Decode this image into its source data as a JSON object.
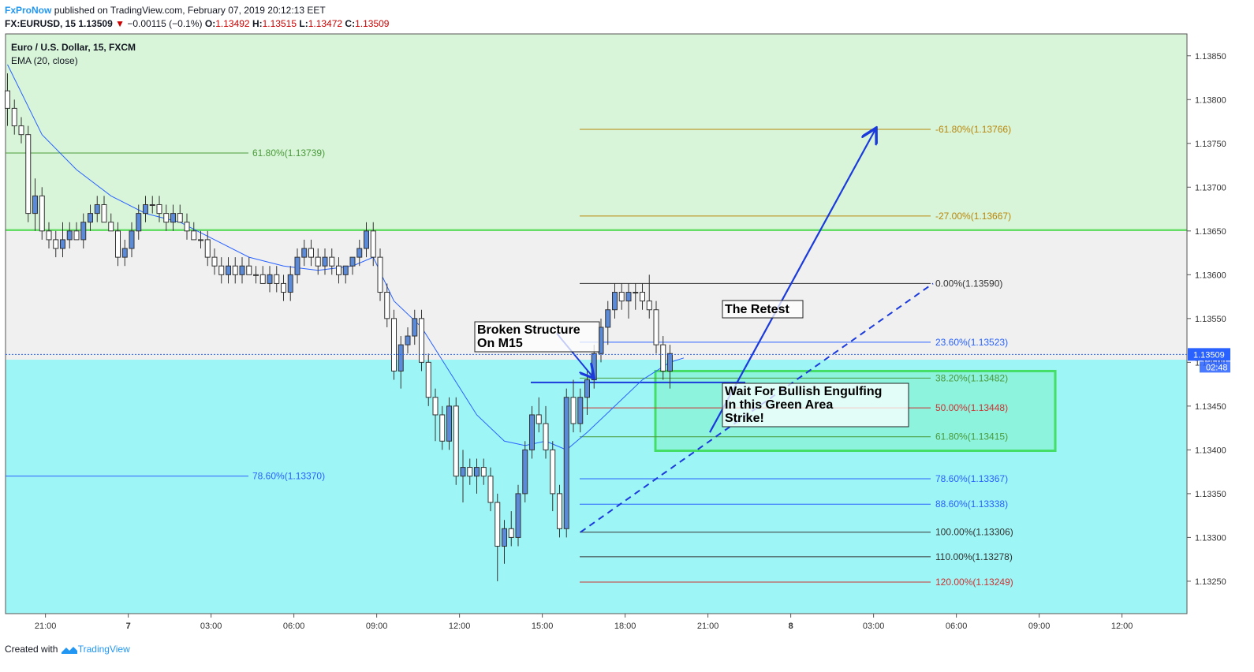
{
  "header": {
    "brand": "FxProNow",
    "published": "published on TradingView.com, February 07, 2019 20:12:13 EET",
    "symbol": "FX:EURUSD, 15",
    "last": "1.13509",
    "change_arrow": "▼",
    "change": "−0.00115 (−0.1%)",
    "o_label": "O:",
    "o": "1.13492",
    "h_label": "H:",
    "h": "1.13515",
    "l_label": "L:",
    "l": "1.13472",
    "c_label": "C:",
    "c": "1.13509"
  },
  "footer": {
    "prefix": "Created with",
    "brand": "TradingView",
    "logo_icon": "tradingview-logo-icon"
  },
  "chart_data": {
    "type": "candlestick",
    "title": "Euro / U.S. Dollar, 15, FXCM",
    "indicator": "EMA (20, close)",
    "ylim": [
      1.13213,
      1.13875
    ],
    "y_ticks": [
      1.1385,
      1.138,
      1.1375,
      1.137,
      1.1365,
      1.136,
      1.1355,
      1.135,
      1.1345,
      1.134,
      1.1335,
      1.133,
      1.1325
    ],
    "x_ticks": [
      {
        "label": "21:00",
        "bar": 5.5
      },
      {
        "label": "7",
        "bar": 17.5
      },
      {
        "label": "03:00",
        "bar": 29.5
      },
      {
        "label": "06:00",
        "bar": 41.5
      },
      {
        "label": "09:00",
        "bar": 53.5
      },
      {
        "label": "12:00",
        "bar": 65.5
      },
      {
        "label": "15:00",
        "bar": 77.5
      },
      {
        "label": "18:00",
        "bar": 89.5
      },
      {
        "label": "21:00",
        "bar": 101.5
      },
      {
        "label": "8",
        "bar": 113.5
      },
      {
        "label": "03:00",
        "bar": 125.5
      },
      {
        "label": "06:00",
        "bar": 137.5
      },
      {
        "label": "09:00",
        "bar": 149.5
      },
      {
        "label": "12:00",
        "bar": 161.5
      }
    ],
    "price_label": "1.13509",
    "countdown": "02:48",
    "zones": [
      {
        "name": "upper-green-zone",
        "from": 1.13651,
        "to": 1.13875,
        "color": "#d9f5d9"
      },
      {
        "name": "middle-grey-zone",
        "from": 1.13503,
        "to": 1.13651,
        "color": "#f0f0f0"
      },
      {
        "name": "lower-cyan-zone",
        "from": 1.13213,
        "to": 1.13503,
        "color": "#9ef5f5"
      }
    ],
    "hlines": [
      {
        "price": 1.13651,
        "color": "#66dd66"
      }
    ],
    "candles": [
      [
        1.1381,
        1.1383,
        1.1377,
        1.1379
      ],
      [
        1.1379,
        1.138,
        1.1376,
        1.1377
      ],
      [
        1.1377,
        1.1378,
        1.1375,
        1.1376
      ],
      [
        1.1376,
        1.1377,
        1.1366,
        1.1367
      ],
      [
        1.1367,
        1.1371,
        1.1365,
        1.1369
      ],
      [
        1.1369,
        1.137,
        1.1364,
        1.1365
      ],
      [
        1.1365,
        1.1366,
        1.1363,
        1.1364
      ],
      [
        1.1364,
        1.1365,
        1.1362,
        1.1363
      ],
      [
        1.1363,
        1.1366,
        1.1362,
        1.1364
      ],
      [
        1.1364,
        1.1366,
        1.1363,
        1.1365
      ],
      [
        1.1365,
        1.1366,
        1.1364,
        1.1364
      ],
      [
        1.1364,
        1.1367,
        1.1363,
        1.1366
      ],
      [
        1.1366,
        1.1368,
        1.1365,
        1.1367
      ],
      [
        1.1367,
        1.1369,
        1.1366,
        1.1368
      ],
      [
        1.1368,
        1.1369,
        1.1366,
        1.1366
      ],
      [
        1.1366,
        1.1367,
        1.1365,
        1.1365
      ],
      [
        1.1365,
        1.1366,
        1.1361,
        1.1362
      ],
      [
        1.1362,
        1.1364,
        1.1361,
        1.1363
      ],
      [
        1.1363,
        1.1366,
        1.1362,
        1.1365
      ],
      [
        1.1365,
        1.1368,
        1.1364,
        1.1367
      ],
      [
        1.1367,
        1.1369,
        1.1366,
        1.1368
      ],
      [
        1.1368,
        1.1369,
        1.1367,
        1.1368
      ],
      [
        1.1368,
        1.1369,
        1.1366,
        1.1367
      ],
      [
        1.1367,
        1.1368,
        1.1365,
        1.1366
      ],
      [
        1.1366,
        1.1368,
        1.1365,
        1.1367
      ],
      [
        1.1367,
        1.1368,
        1.1366,
        1.1366
      ],
      [
        1.1366,
        1.1367,
        1.1364,
        1.1365
      ],
      [
        1.1365,
        1.1366,
        1.1364,
        1.1364
      ],
      [
        1.1364,
        1.1365,
        1.1363,
        1.1364
      ],
      [
        1.1364,
        1.1365,
        1.1361,
        1.1362
      ],
      [
        1.1362,
        1.1363,
        1.136,
        1.1361
      ],
      [
        1.1361,
        1.1362,
        1.1359,
        1.136
      ],
      [
        1.136,
        1.1362,
        1.1359,
        1.1361
      ],
      [
        1.1361,
        1.1362,
        1.1359,
        1.136
      ],
      [
        1.136,
        1.1362,
        1.1359,
        1.1361
      ],
      [
        1.1361,
        1.1362,
        1.136,
        1.136
      ],
      [
        1.136,
        1.1361,
        1.1359,
        1.136
      ],
      [
        1.136,
        1.1361,
        1.1359,
        1.1359
      ],
      [
        1.1359,
        1.1361,
        1.1358,
        1.136
      ],
      [
        1.136,
        1.1361,
        1.1358,
        1.1359
      ],
      [
        1.1359,
        1.136,
        1.1357,
        1.1358
      ],
      [
        1.1358,
        1.1361,
        1.1357,
        1.136
      ],
      [
        1.136,
        1.1363,
        1.1359,
        1.1362
      ],
      [
        1.1362,
        1.1364,
        1.1361,
        1.1363
      ],
      [
        1.1363,
        1.1364,
        1.1361,
        1.1362
      ],
      [
        1.1362,
        1.1363,
        1.136,
        1.1361
      ],
      [
        1.1361,
        1.1363,
        1.136,
        1.1362
      ],
      [
        1.1362,
        1.1363,
        1.136,
        1.1361
      ],
      [
        1.1361,
        1.1362,
        1.1359,
        1.136
      ],
      [
        1.136,
        1.1361,
        1.1359,
        1.1361
      ],
      [
        1.1361,
        1.1362,
        1.136,
        1.1362
      ],
      [
        1.1362,
        1.1364,
        1.1361,
        1.1363
      ],
      [
        1.1363,
        1.1366,
        1.1362,
        1.1365
      ],
      [
        1.1365,
        1.1366,
        1.1361,
        1.1362
      ],
      [
        1.1362,
        1.1363,
        1.1357,
        1.1358
      ],
      [
        1.1358,
        1.1359,
        1.1354,
        1.1355
      ],
      [
        1.1355,
        1.1356,
        1.1348,
        1.1349
      ],
      [
        1.1349,
        1.1353,
        1.1347,
        1.1352
      ],
      [
        1.1352,
        1.1354,
        1.1351,
        1.1353
      ],
      [
        1.1353,
        1.1356,
        1.1352,
        1.1355
      ],
      [
        1.1355,
        1.1356,
        1.1349,
        1.135
      ],
      [
        1.135,
        1.1351,
        1.1345,
        1.1346
      ],
      [
        1.1346,
        1.1347,
        1.1341,
        1.1344
      ],
      [
        1.1344,
        1.1345,
        1.134,
        1.1341
      ],
      [
        1.1341,
        1.1346,
        1.134,
        1.1345
      ],
      [
        1.1345,
        1.1346,
        1.1336,
        1.1337
      ],
      [
        1.1337,
        1.134,
        1.1334,
        1.1338
      ],
      [
        1.1338,
        1.1339,
        1.1336,
        1.1337
      ],
      [
        1.1337,
        1.1339,
        1.1335,
        1.1338
      ],
      [
        1.1338,
        1.1339,
        1.1336,
        1.1337
      ],
      [
        1.1337,
        1.1338,
        1.1333,
        1.1334
      ],
      [
        1.1334,
        1.1335,
        1.1325,
        1.1329
      ],
      [
        1.1329,
        1.1332,
        1.1327,
        1.1331
      ],
      [
        1.1331,
        1.1333,
        1.1329,
        1.133
      ],
      [
        1.133,
        1.1336,
        1.1329,
        1.1335
      ],
      [
        1.1335,
        1.1341,
        1.1334,
        1.134
      ],
      [
        1.134,
        1.1345,
        1.1339,
        1.1344
      ],
      [
        1.1344,
        1.1346,
        1.1342,
        1.1343
      ],
      [
        1.1343,
        1.1345,
        1.1339,
        1.134
      ],
      [
        1.134,
        1.1341,
        1.1333,
        1.1335
      ],
      [
        1.1335,
        1.1336,
        1.133,
        1.1331
      ],
      [
        1.1331,
        1.1347,
        1.133,
        1.1346
      ],
      [
        1.1346,
        1.1348,
        1.1342,
        1.1343
      ],
      [
        1.1343,
        1.1347,
        1.1342,
        1.1346
      ],
      [
        1.1346,
        1.1349,
        1.1344,
        1.1348
      ],
      [
        1.1348,
        1.1352,
        1.1347,
        1.1351
      ],
      [
        1.1351,
        1.1355,
        1.135,
        1.1354
      ],
      [
        1.1354,
        1.1357,
        1.1352,
        1.1356
      ],
      [
        1.1356,
        1.1359,
        1.1355,
        1.1358
      ],
      [
        1.1358,
        1.1359,
        1.1356,
        1.1357
      ],
      [
        1.1357,
        1.1359,
        1.1355,
        1.1358
      ],
      [
        1.1358,
        1.1359,
        1.1356,
        1.1358
      ],
      [
        1.1358,
        1.1359,
        1.1356,
        1.1357
      ],
      [
        1.1357,
        1.136,
        1.1355,
        1.1356
      ],
      [
        1.1356,
        1.1357,
        1.1351,
        1.1352
      ],
      [
        1.1352,
        1.1353,
        1.1348,
        1.1349
      ],
      [
        1.1349,
        1.1352,
        1.1347,
        1.1351
      ]
    ],
    "ema": [
      [
        0,
        1.1384
      ],
      [
        5,
        1.1376
      ],
      [
        10,
        1.1372
      ],
      [
        15,
        1.1369
      ],
      [
        20,
        1.1367
      ],
      [
        25,
        1.1366
      ],
      [
        30,
        1.1364
      ],
      [
        35,
        1.1362
      ],
      [
        40,
        1.1361
      ],
      [
        45,
        1.13605
      ],
      [
        50,
        1.1361
      ],
      [
        53,
        1.1362
      ],
      [
        56,
        1.1357
      ],
      [
        60,
        1.1354
      ],
      [
        64,
        1.1349
      ],
      [
        68,
        1.1344
      ],
      [
        72,
        1.1341
      ],
      [
        75,
        1.13405
      ],
      [
        78,
        1.1341
      ],
      [
        81,
        1.134
      ],
      [
        84,
        1.1342
      ],
      [
        88,
        1.1345
      ],
      [
        92,
        1.1348
      ],
      [
        96,
        1.135
      ],
      [
        98,
        1.13505
      ]
    ],
    "fib_left": [
      {
        "label": "61.80%(1.13739)",
        "price": 1.13739,
        "color": "#4a9a3a"
      },
      {
        "label": "78.60%(1.13370)",
        "price": 1.1337,
        "color": "#2962ff"
      }
    ],
    "fib_right": [
      {
        "label": "-61.80%(1.13766)",
        "price": 1.13766,
        "color": "#b8860b"
      },
      {
        "label": "-27.00%(1.13667)",
        "price": 1.13667,
        "color": "#b8860b"
      },
      {
        "label": "0.00%(1.13590)",
        "price": 1.1359,
        "color": "#333333"
      },
      {
        "label": "23.60%(1.13523)",
        "price": 1.13523,
        "color": "#2962ff"
      },
      {
        "label": "38.20%(1.13482)",
        "price": 1.13482,
        "color": "#4a9a3a"
      },
      {
        "label": "50.00%(1.13448)",
        "price": 1.13448,
        "color": "#cc3333"
      },
      {
        "label": "61.80%(1.13415)",
        "price": 1.13415,
        "color": "#4a9a3a"
      },
      {
        "label": "78.60%(1.13367)",
        "price": 1.13367,
        "color": "#2962ff"
      },
      {
        "label": "88.60%(1.13338)",
        "price": 1.13338,
        "color": "#2962ff"
      },
      {
        "label": "100.00%(1.13306)",
        "price": 1.13306,
        "color": "#333333"
      },
      {
        "label": "110.00%(1.13278)",
        "price": 1.13278,
        "color": "#333333"
      },
      {
        "label": "120.00%(1.13249)",
        "price": 1.13249,
        "color": "#cc3333"
      }
    ],
    "annotations": [
      {
        "name": "broken-structure-label",
        "lines": [
          "Broken Structure",
          "On M15"
        ]
      },
      {
        "name": "retest-label",
        "lines": [
          "The Retest"
        ]
      },
      {
        "name": "engulfing-label",
        "lines": [
          "Wait For Bullish Engulfing",
          "In this Green Area",
          "Strike!"
        ]
      }
    ]
  }
}
